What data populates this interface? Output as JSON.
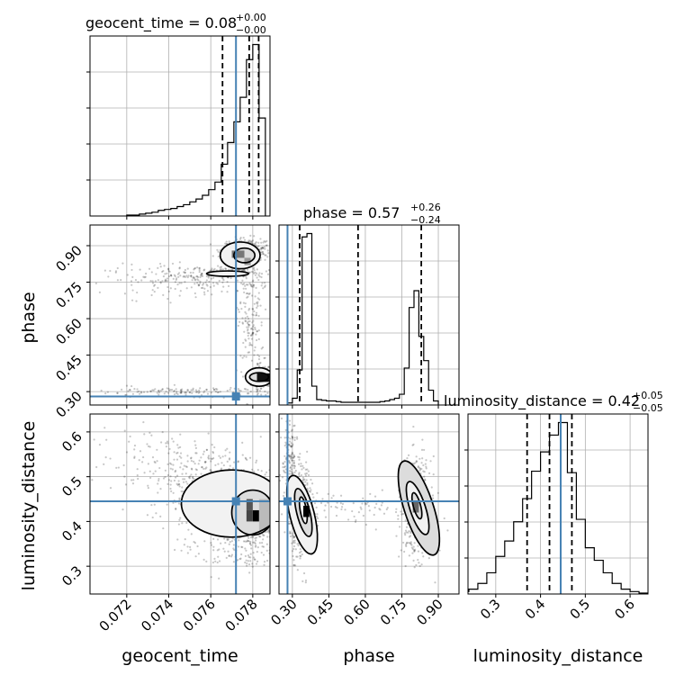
{
  "colors": {
    "truth": "#4682b4",
    "line": "#000000",
    "grid": "#b0b0b0"
  },
  "chart_data": {
    "type": "corner",
    "parameters": [
      "geocent_time",
      "phase",
      "luminosity_distance"
    ],
    "truths": {
      "geocent_time": 0.0772,
      "phase": 0.28,
      "luminosity_distance": 0.445
    },
    "panel_titles": [
      {
        "text": "geocent_time = 0.08",
        "sup": "+0.00",
        "sub": "−0.00"
      },
      {
        "text": "phase = 0.57",
        "sup": "+0.26",
        "sub": "−0.24"
      },
      {
        "text": "luminosity_distance = 0.42",
        "sup": "+0.05",
        "sub": "−0.05"
      }
    ],
    "xlabels": [
      "geocent_time",
      "phase",
      "luminosity_distance"
    ],
    "ylabels": [
      "",
      "phase",
      "luminosity_distance"
    ],
    "ticks": {
      "geocent_time": [
        "0.072",
        "0.074",
        "0.076",
        "0.078"
      ],
      "phase": [
        "0.30",
        "0.45",
        "0.60",
        "0.75",
        "0.90"
      ],
      "luminosity_distance_y": [
        "0.3",
        "0.4",
        "0.5",
        "0.6"
      ],
      "luminosity_distance_x": [
        "0.3",
        "0.4",
        "0.5",
        "0.6"
      ]
    },
    "ranges": {
      "geocent_time": [
        0.07025,
        0.07882
      ],
      "phase": [
        0.245,
        0.985
      ],
      "luminosity_distance": [
        0.238,
        0.64
      ]
    },
    "histograms": {
      "geocent_time": {
        "edges": [
          0.072,
          0.0723,
          0.0726,
          0.0729,
          0.0732,
          0.0735,
          0.0738,
          0.0741,
          0.0744,
          0.0747,
          0.075,
          0.0753,
          0.0756,
          0.0759,
          0.0762,
          0.0765,
          0.0768,
          0.0771,
          0.0774,
          0.0777,
          0.078,
          0.0783,
          0.0786
        ],
        "counts": [
          1,
          1,
          2,
          3,
          4,
          6,
          7,
          8,
          10,
          12,
          15,
          18,
          22,
          28,
          36,
          55,
          78,
          100,
          126,
          166,
          182,
          104
        ],
        "quantiles": [
          0.07656,
          0.07783,
          0.07828
        ]
      },
      "phase": {
        "edges": [
          0.28,
          0.3,
          0.32,
          0.34,
          0.36,
          0.38,
          0.4,
          0.42,
          0.44,
          0.46,
          0.48,
          0.5,
          0.52,
          0.54,
          0.56,
          0.58,
          0.6,
          0.62,
          0.64,
          0.66,
          0.68,
          0.7,
          0.72,
          0.74,
          0.76,
          0.78,
          0.8,
          0.82,
          0.84,
          0.86,
          0.88,
          0.9
        ],
        "counts": [
          3,
          10,
          52,
          250,
          255,
          28,
          8,
          7,
          6,
          6,
          5,
          4,
          4,
          4,
          4,
          4,
          4,
          4,
          4,
          5,
          6,
          8,
          10,
          16,
          55,
          145,
          170,
          102,
          66,
          22,
          6
        ],
        "quantiles": [
          0.33,
          0.57,
          0.83
        ]
      },
      "luminosity_distance": {
        "edges": [
          0.2,
          0.22,
          0.24,
          0.26,
          0.28,
          0.3,
          0.32,
          0.34,
          0.36,
          0.38,
          0.4,
          0.42,
          0.44,
          0.46,
          0.48,
          0.5,
          0.52,
          0.54,
          0.56,
          0.58,
          0.6,
          0.62,
          0.64
        ],
        "counts": [
          2,
          5,
          10,
          22,
          44,
          78,
          110,
          150,
          198,
          255,
          295,
          330,
          356,
          252,
          155,
          96,
          70,
          44,
          22,
          10,
          5,
          2
        ],
        "quantiles": [
          0.37,
          0.42,
          0.47
        ]
      }
    },
    "pair_panels": {
      "phase_vs_geocent_time": {
        "x": "geocent_time",
        "y": "phase",
        "blobs": [
          {
            "cx": 0.0785,
            "cy": 0.36,
            "sx": 0.0003,
            "sy": 0.018,
            "n": 380
          },
          {
            "cx": 0.0777,
            "cy": 0.88,
            "sx": 0.0006,
            "sy": 0.025,
            "n": 260
          },
          {
            "cx": 0.0766,
            "cy": 0.79,
            "sx": 0.001,
            "sy": 0.012,
            "n": 120
          },
          {
            "cx": 0.0779,
            "cy": 0.58,
            "sx": 0.0003,
            "sy": 0.15,
            "n": 180
          },
          {
            "cx": 0.075,
            "cy": 0.76,
            "sx": 0.002,
            "sy": 0.03,
            "n": 200
          },
          {
            "cx": 0.0755,
            "cy": 0.3,
            "sx": 0.003,
            "sy": 0.01,
            "n": 160
          }
        ],
        "contours": [
          {
            "cx": 0.0783,
            "cy": 0.36,
            "rx": 0.00065,
            "ry": 0.038
          },
          {
            "cx": 0.0783,
            "cy": 0.36,
            "rx": 0.00045,
            "ry": 0.018
          },
          {
            "cx": 0.0774,
            "cy": 0.86,
            "rx": 0.00095,
            "ry": 0.055
          },
          {
            "cx": 0.0776,
            "cy": 0.86,
            "rx": 0.0005,
            "ry": 0.03
          },
          {
            "cx": 0.0768,
            "cy": 0.785,
            "rx": 0.001,
            "ry": 0.011
          }
        ],
        "dark_bins": [
          {
            "x0": 0.0782,
            "x1": 0.0788,
            "y0": 0.34,
            "y1": 0.375,
            "shade": "#111111"
          },
          {
            "x0": 0.077,
            "x1": 0.0776,
            "y0": 0.85,
            "y1": 0.88,
            "shade": "#777777"
          },
          {
            "x0": 0.0776,
            "x1": 0.0779,
            "y0": 0.82,
            "y1": 0.85,
            "shade": "#999999"
          }
        ]
      },
      "luminosity_distance_vs_geocent_time": {
        "x": "geocent_time",
        "y": "luminosity_distance",
        "blobs": [
          {
            "cx": 0.078,
            "cy": 0.42,
            "sx": 0.0006,
            "sy": 0.045,
            "n": 520
          },
          {
            "cx": 0.076,
            "cy": 0.48,
            "sx": 0.0015,
            "sy": 0.04,
            "n": 260
          },
          {
            "cx": 0.074,
            "cy": 0.53,
            "sx": 0.002,
            "sy": 0.04,
            "n": 160
          },
          {
            "cx": 0.077,
            "cy": 0.34,
            "sx": 0.0012,
            "sy": 0.03,
            "n": 120
          }
        ],
        "contours": [
          {
            "cx": 0.077,
            "cy": 0.44,
            "rx": 0.0024,
            "ry": 0.075
          },
          {
            "cx": 0.078,
            "cy": 0.42,
            "rx": 0.001,
            "ry": 0.05
          }
        ],
        "dark_bins": [
          {
            "x0": 0.078,
            "x1": 0.0783,
            "y0": 0.4,
            "y1": 0.425,
            "shade": "#000000"
          },
          {
            "x0": 0.0777,
            "x1": 0.078,
            "y0": 0.425,
            "y1": 0.45,
            "shade": "#555555"
          },
          {
            "x0": 0.0777,
            "x1": 0.078,
            "y0": 0.4,
            "y1": 0.425,
            "shade": "#444444"
          },
          {
            "x0": 0.0783,
            "x1": 0.0788,
            "y0": 0.38,
            "y1": 0.45,
            "shade": "#bbbbbb"
          }
        ]
      },
      "luminosity_distance_vs_phase": {
        "x": "phase",
        "y": "luminosity_distance",
        "blobs": [
          {
            "cx": 0.34,
            "cy": 0.42,
            "sx": 0.025,
            "sy": 0.05,
            "n": 480
          },
          {
            "cx": 0.81,
            "cy": 0.43,
            "sx": 0.03,
            "sy": 0.055,
            "n": 460
          },
          {
            "cx": 0.29,
            "cy": 0.55,
            "sx": 0.015,
            "sy": 0.05,
            "n": 120
          },
          {
            "cx": 0.58,
            "cy": 0.43,
            "sx": 0.15,
            "sy": 0.02,
            "n": 90
          }
        ],
        "contours": [
          {
            "cx": 0.34,
            "cy": 0.415,
            "rx": 0.05,
            "ry": 0.09,
            "rot": -14
          },
          {
            "cx": 0.345,
            "cy": 0.42,
            "rx": 0.027,
            "ry": 0.055,
            "rot": -14
          },
          {
            "cx": 0.345,
            "cy": 0.425,
            "rx": 0.013,
            "ry": 0.03,
            "rot": -10
          },
          {
            "cx": 0.82,
            "cy": 0.43,
            "rx": 0.06,
            "ry": 0.11,
            "rot": -18
          },
          {
            "cx": 0.815,
            "cy": 0.43,
            "rx": 0.032,
            "ry": 0.062,
            "rot": -18
          },
          {
            "cx": 0.812,
            "cy": 0.435,
            "rx": 0.015,
            "ry": 0.03,
            "rot": -15
          }
        ],
        "dark_bins": [
          {
            "x0": 0.345,
            "x1": 0.37,
            "y0": 0.41,
            "y1": 0.435,
            "shade": "#000000"
          },
          {
            "x0": 0.795,
            "x1": 0.82,
            "y0": 0.42,
            "y1": 0.445,
            "shade": "#666666"
          }
        ]
      }
    }
  }
}
